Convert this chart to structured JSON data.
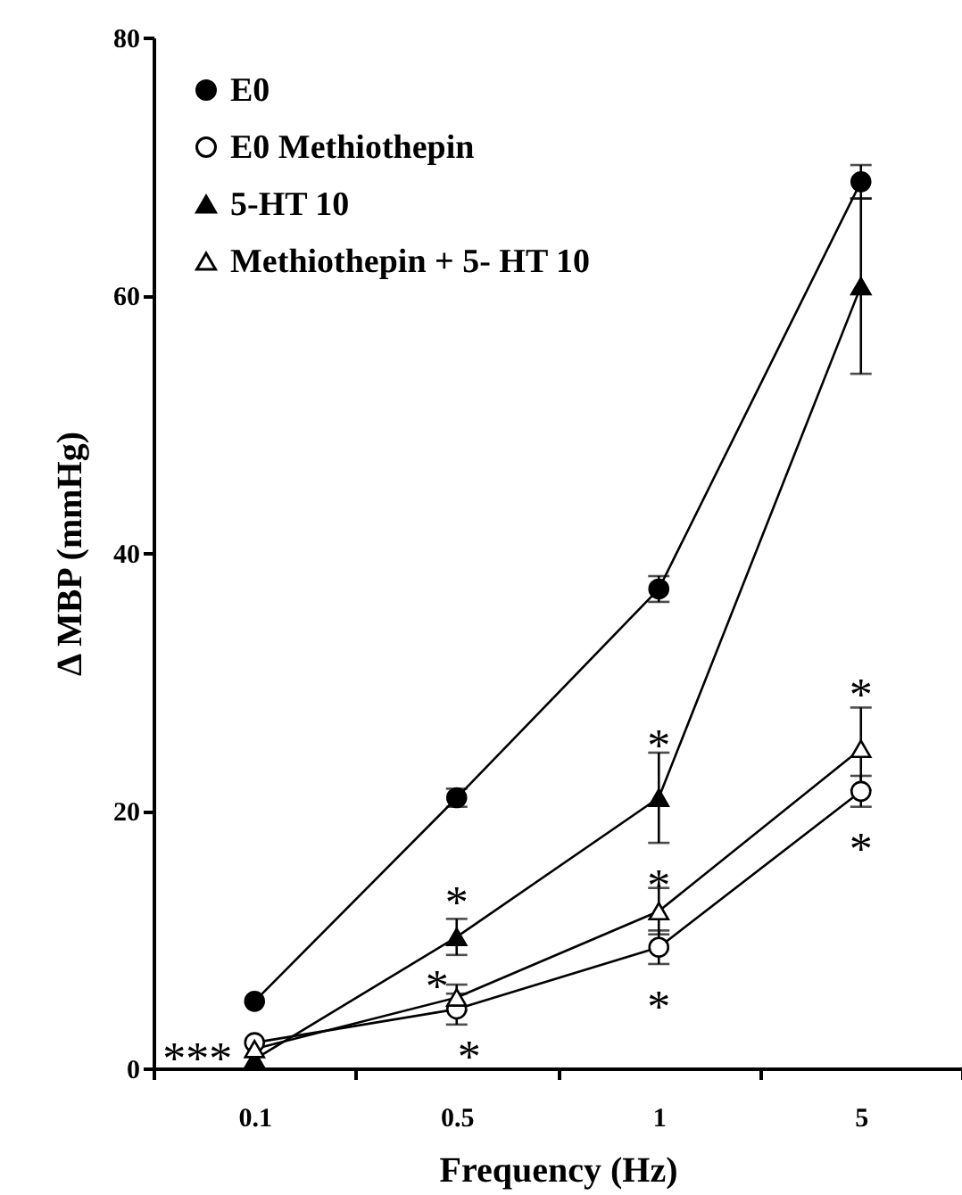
{
  "chart_data": {
    "type": "line",
    "xlabel": "Frequency (Hz)",
    "ylabel": "Δ MBP (mmHg)",
    "categories": [
      "0.1",
      "0.5",
      "1",
      "5"
    ],
    "ylim": [
      0,
      80
    ],
    "yticks": [
      0,
      20,
      40,
      60,
      80
    ],
    "grid": false,
    "legend": "top left",
    "line_style": "solid",
    "series": [
      {
        "name": "E0",
        "color": "#000000",
        "marker": "circle",
        "values": [
          5.2,
          21.0,
          37.2,
          68.8
        ],
        "errors": [
          null,
          0.7,
          1.0,
          1.3
        ]
      },
      {
        "name": "E0 Methiothepin",
        "color": "#000000",
        "marker": "circle-open",
        "values": [
          2.0,
          4.6,
          9.4,
          21.5
        ],
        "errors": [
          null,
          1.2,
          1.3,
          1.2
        ]
      },
      {
        "name": "5-HT 10",
        "color": "#000000",
        "marker": "triangle",
        "values": [
          0.7,
          10.2,
          21.0,
          60.7
        ],
        "errors": [
          null,
          1.4,
          3.5,
          6.8
        ]
      },
      {
        "name": "Methiothepin + 5- HT 10",
        "color": "#000000",
        "marker": "triangle-open",
        "values": [
          1.5,
          5.5,
          12.2,
          24.8
        ],
        "errors": [
          null,
          1.0,
          1.8,
          3.2
        ]
      }
    ],
    "annotations": [
      {
        "text": "***",
        "x": "0.1",
        "y": 1.5
      },
      {
        "text": "*",
        "x": "0.5",
        "y": 10.2
      },
      {
        "text": "*",
        "x": "0.5",
        "y": 5.5
      },
      {
        "text": "*",
        "x": "0.5",
        "y": 4.6
      },
      {
        "text": "*",
        "x": "1",
        "y": 21.0
      },
      {
        "text": "*",
        "x": "1",
        "y": 12.2
      },
      {
        "text": "*",
        "x": "1",
        "y": 9.4
      },
      {
        "text": "*",
        "x": "5",
        "y": 24.8
      },
      {
        "text": "*",
        "x": "5",
        "y": 21.5
      }
    ]
  }
}
